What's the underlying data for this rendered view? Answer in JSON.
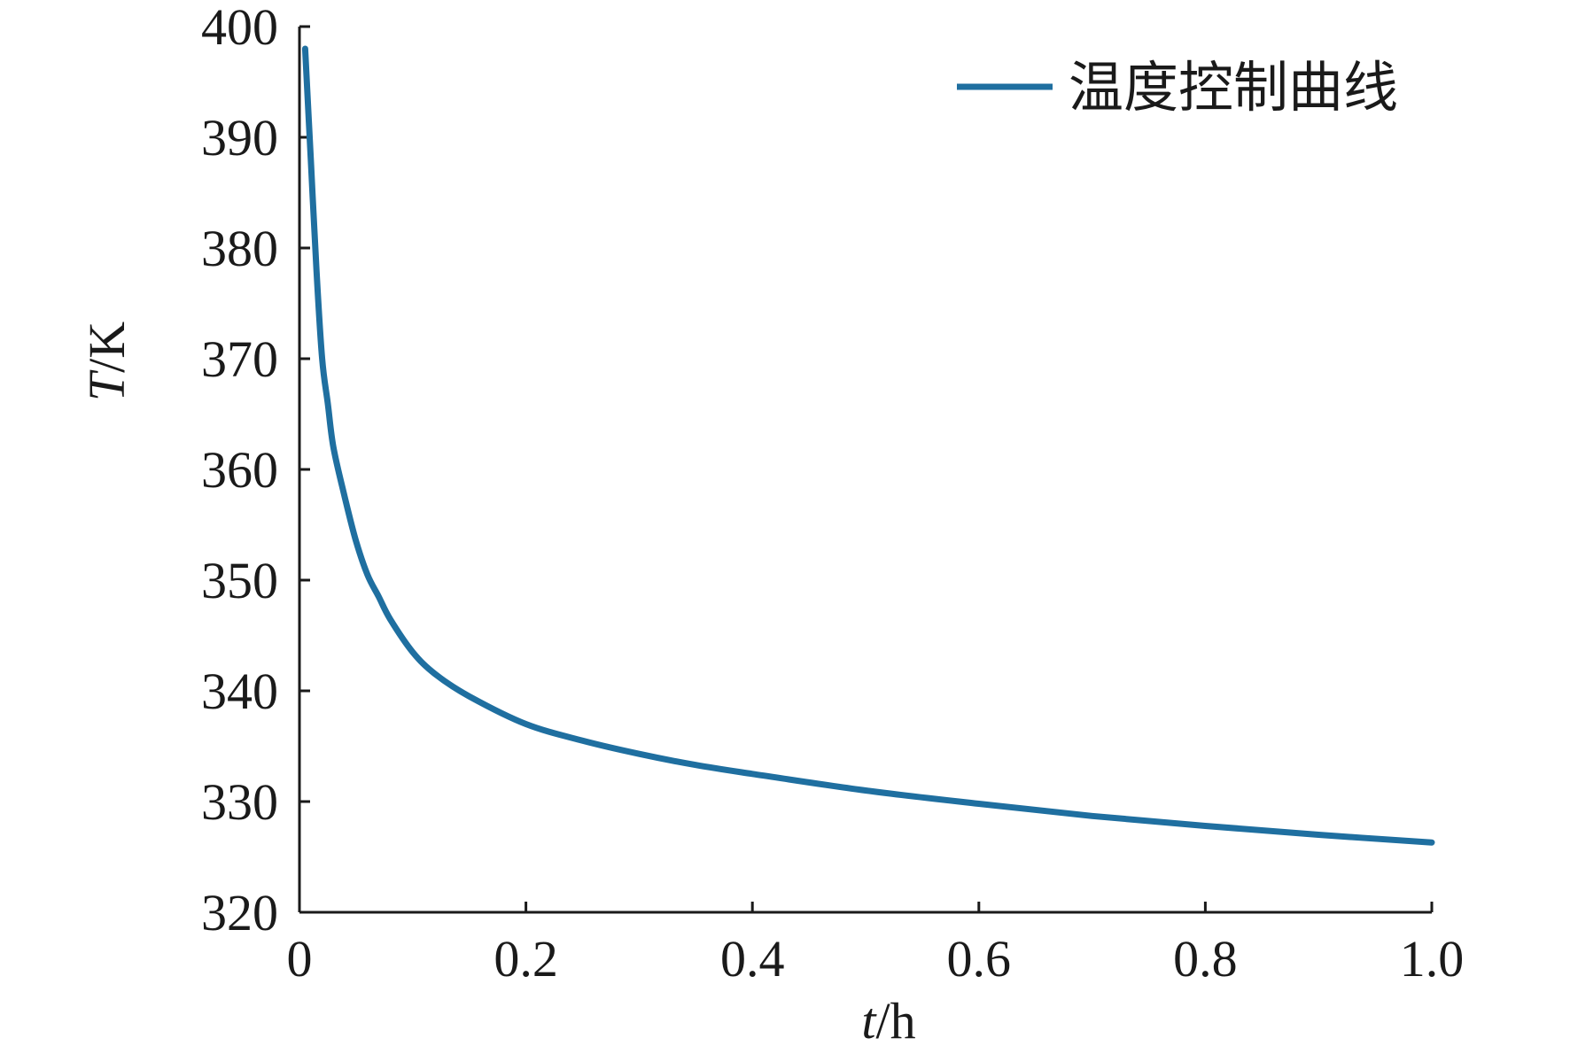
{
  "chart_data": {
    "type": "line",
    "title": "",
    "xlabel": {
      "var": "t",
      "unit": "/h"
    },
    "ylabel": {
      "var": "T",
      "unit": "/K"
    },
    "xlim": [
      0,
      1.0
    ],
    "ylim": [
      320,
      400
    ],
    "xticks": [
      "0",
      "0.2",
      "0.4",
      "0.6",
      "0.8",
      "1.0"
    ],
    "xtick_values": [
      0,
      0.2,
      0.4,
      0.6,
      0.8,
      1.0
    ],
    "yticks": [
      "320",
      "330",
      "340",
      "350",
      "360",
      "370",
      "380",
      "390",
      "400"
    ],
    "ytick_values": [
      320,
      330,
      340,
      350,
      360,
      370,
      380,
      390,
      400
    ],
    "grid": false,
    "legend_position": "top-right",
    "series": [
      {
        "name": "温度控制曲线",
        "color": "#1f6fa0",
        "x": [
          0.005,
          0.01,
          0.015,
          0.02,
          0.025,
          0.03,
          0.04,
          0.05,
          0.06,
          0.07,
          0.08,
          0.1,
          0.12,
          0.15,
          0.2,
          0.25,
          0.3,
          0.35,
          0.4,
          0.5,
          0.6,
          0.7,
          0.8,
          0.9,
          1.0
        ],
        "y": [
          398,
          388,
          378,
          370,
          366,
          362,
          357.5,
          353.5,
          350.5,
          348.5,
          346.5,
          343.5,
          341.5,
          339.5,
          337,
          335.5,
          334.3,
          333.3,
          332.5,
          331,
          329.8,
          328.7,
          327.8,
          327,
          326.3
        ]
      }
    ]
  }
}
